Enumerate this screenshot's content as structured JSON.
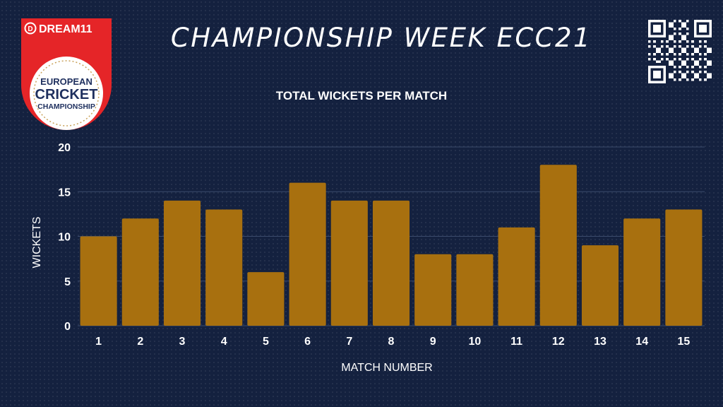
{
  "header": {
    "title": "CHAMPIONSHIP WEEK ECC21",
    "logo": {
      "brand": "DREAM11",
      "line1": "EUROPEAN",
      "line2": "CRICKET",
      "line3": "CHAMPIONSHIP",
      "brand_color": "#e52528"
    },
    "qr_code": {
      "icon": "qr-code-icon"
    }
  },
  "colors": {
    "background": "#14213f",
    "bar": "#a8700f",
    "text": "#ffffff",
    "grid": "#3a4a6b"
  },
  "chart_data": {
    "type": "bar",
    "title": "TOTAL WICKETS PER MATCH",
    "xlabel": "MATCH NUMBER",
    "ylabel": "WICKETS",
    "categories": [
      "1",
      "2",
      "3",
      "4",
      "5",
      "6",
      "7",
      "8",
      "9",
      "10",
      "11",
      "12",
      "13",
      "14",
      "15"
    ],
    "values": [
      10,
      12,
      14,
      13,
      6,
      16,
      14,
      14,
      8,
      8,
      11,
      18,
      9,
      12,
      13
    ],
    "ylim": [
      0,
      20
    ],
    "yticks": [
      "0",
      "5",
      "10",
      "15",
      "20"
    ],
    "grid": true,
    "legend": "none"
  }
}
